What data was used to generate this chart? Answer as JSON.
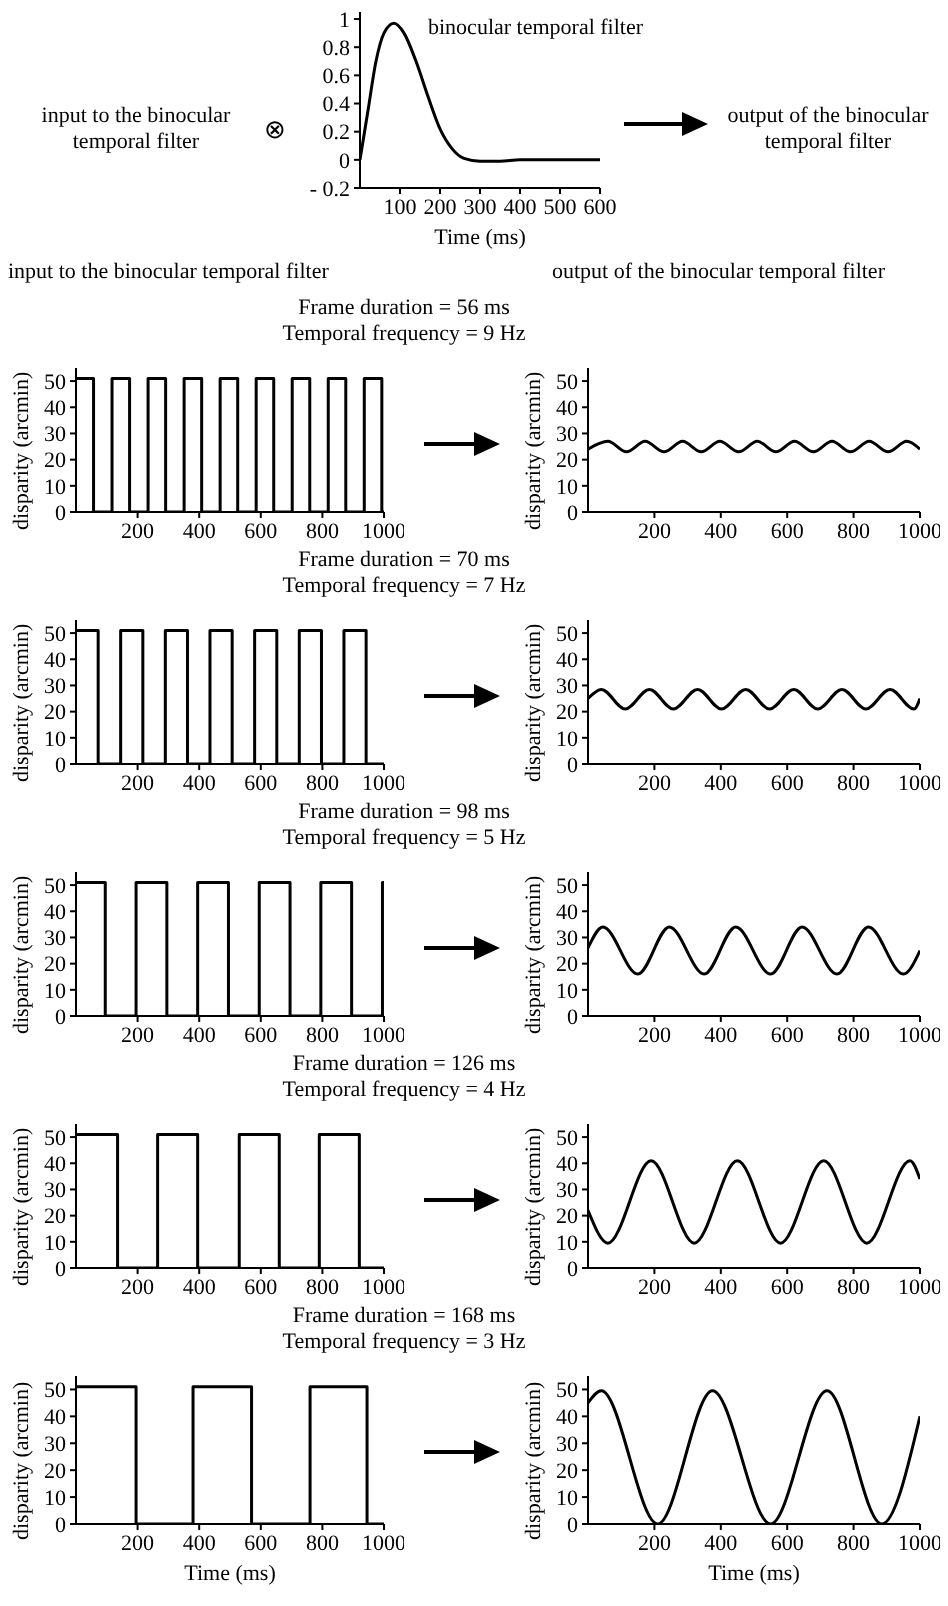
{
  "chart_data": [
    {
      "type": "line",
      "xlabel": "Time (ms)",
      "annotations": [
        "input to the binocular temporal filter",
        "⊗",
        "output of the binocular temporal filter",
        "input to the binocular temporal filter",
        "output of the binocular temporal filter"
      ],
      "x": [
        0,
        20,
        40,
        60,
        85,
        110,
        140,
        170,
        200,
        230,
        260,
        300,
        350,
        400,
        600
      ],
      "series": [
        {
          "name": "binocular temporal filter",
          "color": "#000000",
          "values": [
            0,
            0.35,
            0.7,
            0.9,
            0.97,
            0.9,
            0.7,
            0.45,
            0.22,
            0.08,
            0.01,
            -0.01,
            -0.01,
            0,
            0
          ]
        }
      ],
      "xlim": [
        0,
        600
      ],
      "xticks": [
        100,
        200,
        300,
        400,
        500,
        600
      ],
      "ylim": [
        -0.2,
        1.05
      ],
      "yticks": [
        {
          "value": -0.2,
          "label": "- 0.2"
        },
        0,
        0.2,
        0.4,
        0.6,
        0.8,
        1
      ]
    },
    {
      "type": "step",
      "title": "Frame duration = 56 ms",
      "subtitle": "Temporal frequency = 9 Hz",
      "ylabel": "disparity (arcmin)",
      "x": [
        0,
        57,
        117,
        174,
        234,
        291,
        351,
        408,
        468,
        525,
        585,
        642,
        702,
        759,
        819,
        876,
        936,
        993,
        1000
      ],
      "series": [
        {
          "color": "#000000",
          "values": [
            51,
            0,
            51,
            0,
            51,
            0,
            51,
            0,
            51,
            0,
            51,
            0,
            51,
            0,
            51,
            0,
            51,
            0,
            0
          ]
        }
      ],
      "xlim": [
        0,
        1000
      ],
      "xticks": [
        200,
        400,
        600,
        800,
        1000
      ],
      "ylim": [
        0,
        55
      ],
      "yticks": [
        0,
        10,
        20,
        30,
        40,
        50
      ]
    },
    {
      "type": "line",
      "ylabel": "disparity (arcmin)",
      "x": [
        0,
        60,
        116,
        172,
        229,
        285,
        341,
        397,
        454,
        510,
        566,
        622,
        679,
        735,
        791,
        847,
        904,
        960,
        1000
      ],
      "series": [
        {
          "color": "#000000",
          "values": [
            24,
            27,
            23,
            27,
            23,
            27,
            23,
            27,
            23,
            27,
            23,
            27,
            23,
            27,
            23,
            27,
            23,
            27,
            24
          ]
        }
      ],
      "xlim": [
        0,
        1000
      ],
      "xticks": [
        200,
        400,
        600,
        800,
        1000
      ],
      "ylim": [
        0,
        55
      ],
      "yticks": [
        0,
        10,
        20,
        30,
        40,
        50
      ]
    },
    {
      "type": "step",
      "title": "Frame duration = 70 ms",
      "subtitle": "Temporal frequency = 7 Hz",
      "ylabel": "disparity (arcmin)",
      "x": [
        0,
        72,
        145,
        217,
        290,
        362,
        435,
        507,
        580,
        652,
        725,
        797,
        870,
        942,
        1000
      ],
      "series": [
        {
          "color": "#000000",
          "values": [
            51,
            0,
            51,
            0,
            51,
            0,
            51,
            0,
            51,
            0,
            51,
            0,
            51,
            0,
            0
          ]
        }
      ],
      "xlim": [
        0,
        1000
      ],
      "xticks": [
        200,
        400,
        600,
        800,
        1000
      ],
      "ylim": [
        0,
        55
      ],
      "yticks": [
        0,
        10,
        20,
        30,
        40,
        50
      ]
    },
    {
      "type": "line",
      "ylabel": "disparity (arcmin)",
      "x": [
        0,
        40,
        112,
        185,
        257,
        330,
        402,
        475,
        547,
        620,
        692,
        765,
        837,
        910,
        982,
        1000
      ],
      "series": [
        {
          "color": "#000000",
          "values": [
            25,
            28.5,
            21,
            28.5,
            21,
            28.5,
            21,
            28.5,
            21,
            28.5,
            21,
            28.5,
            21,
            28.5,
            21,
            25
          ]
        }
      ],
      "xlim": [
        0,
        1000
      ],
      "xticks": [
        200,
        400,
        600,
        800,
        1000
      ],
      "ylim": [
        0,
        55
      ],
      "yticks": [
        0,
        10,
        20,
        30,
        40,
        50
      ]
    },
    {
      "type": "step",
      "title": "Frame duration = 98 ms",
      "subtitle": "Temporal frequency = 5 Hz",
      "ylabel": "disparity (arcmin)",
      "x": [
        0,
        95,
        195,
        295,
        395,
        495,
        595,
        695,
        795,
        895,
        995,
        1000
      ],
      "series": [
        {
          "color": "#000000",
          "values": [
            51,
            0,
            51,
            0,
            51,
            0,
            51,
            0,
            51,
            0,
            51,
            51
          ]
        }
      ],
      "xlim": [
        0,
        1000
      ],
      "xticks": [
        200,
        400,
        600,
        800,
        1000
      ],
      "ylim": [
        0,
        55
      ],
      "yticks": [
        0,
        10,
        20,
        30,
        40,
        50
      ]
    },
    {
      "type": "line",
      "ylabel": "disparity (arcmin)",
      "x": [
        0,
        45,
        150,
        245,
        350,
        445,
        550,
        645,
        750,
        845,
        950,
        1000
      ],
      "series": [
        {
          "color": "#000000",
          "values": [
            26,
            34,
            16,
            34,
            16,
            34,
            16,
            34,
            16,
            34,
            16,
            25
          ]
        }
      ],
      "xlim": [
        0,
        1000
      ],
      "xticks": [
        200,
        400,
        600,
        800,
        1000
      ],
      "ylim": [
        0,
        55
      ],
      "yticks": [
        0,
        10,
        20,
        30,
        40,
        50
      ]
    },
    {
      "type": "step",
      "title": "Frame duration = 126 ms",
      "subtitle": "Temporal frequency = 4 Hz",
      "ylabel": "disparity (arcmin)",
      "x": [
        0,
        135,
        265,
        395,
        530,
        660,
        790,
        920,
        1000
      ],
      "series": [
        {
          "color": "#000000",
          "values": [
            51,
            0,
            51,
            0,
            51,
            0,
            51,
            0,
            0
          ]
        }
      ],
      "xlim": [
        0,
        1000
      ],
      "xticks": [
        200,
        400,
        600,
        800,
        1000
      ],
      "ylim": [
        0,
        55
      ],
      "yticks": [
        0,
        10,
        20,
        30,
        40,
        50
      ]
    },
    {
      "type": "line",
      "ylabel": "disparity (arcmin)",
      "x": [
        0,
        60,
        190,
        320,
        450,
        580,
        710,
        840,
        970,
        1000
      ],
      "series": [
        {
          "color": "#000000",
          "values": [
            22,
            9.5,
            41,
            9.5,
            41,
            9.5,
            41,
            9.5,
            41,
            34
          ]
        }
      ],
      "xlim": [
        0,
        1000
      ],
      "xticks": [
        200,
        400,
        600,
        800,
        1000
      ],
      "ylim": [
        0,
        55
      ],
      "yticks": [
        0,
        10,
        20,
        30,
        40,
        50
      ]
    },
    {
      "type": "step",
      "title": "Frame duration = 168 ms",
      "subtitle": "Temporal frequency = 3 Hz",
      "xlabel": "Time (ms)",
      "ylabel": "disparity (arcmin)",
      "x": [
        0,
        195,
        380,
        570,
        760,
        945,
        1000
      ],
      "series": [
        {
          "color": "#000000",
          "values": [
            51,
            0,
            51,
            0,
            51,
            0,
            0
          ]
        }
      ],
      "xlim": [
        0,
        1000
      ],
      "xticks": [
        200,
        400,
        600,
        800,
        1000
      ],
      "ylim": [
        0,
        55
      ],
      "yticks": [
        0,
        10,
        20,
        30,
        40,
        50
      ]
    },
    {
      "type": "line",
      "xlabel": "Time (ms)",
      "ylabel": "disparity (arcmin)",
      "x": [
        0,
        40,
        210,
        375,
        550,
        720,
        885,
        1000
      ],
      "series": [
        {
          "color": "#000000",
          "values": [
            45,
            49.5,
            0,
            49.5,
            0,
            49.5,
            0,
            40
          ]
        }
      ],
      "xlim": [
        0,
        1000
      ],
      "xticks": [
        200,
        400,
        600,
        800,
        1000
      ],
      "ylim": [
        0,
        55
      ],
      "yticks": [
        0,
        10,
        20,
        30,
        40,
        50
      ]
    }
  ]
}
